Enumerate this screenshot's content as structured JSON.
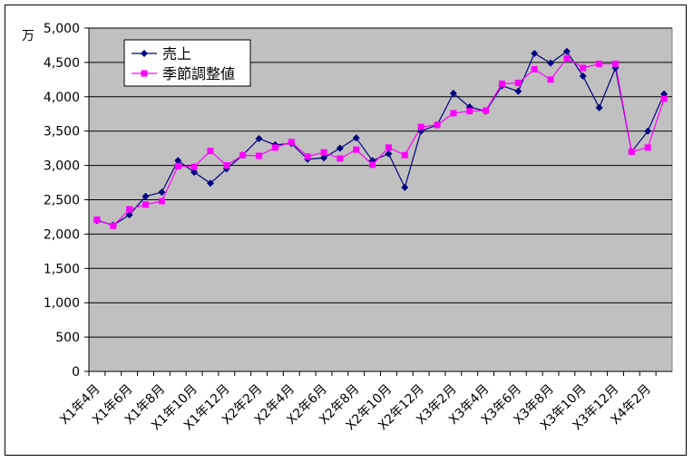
{
  "chart_data": {
    "type": "line",
    "y_unit_label": "万",
    "categories": [
      "X1年4月",
      null,
      "X1年6月",
      null,
      "X1年8月",
      null,
      "X1年10月",
      null,
      "X1年12月",
      null,
      "X2年2月",
      null,
      "X2年4月",
      null,
      "X2年6月",
      null,
      "X2年8月",
      null,
      "X2年10月",
      null,
      "X2年12月",
      null,
      "X3年2月",
      null,
      "X3年4月",
      null,
      "X3年6月",
      null,
      "X3年8月",
      null,
      "X3年10月",
      null,
      "X3年12月",
      null,
      "X4年2月",
      null
    ],
    "series": [
      {
        "name": "売上",
        "color": "#000080",
        "marker": "diamond",
        "values": [
          2200,
          2130,
          2280,
          2550,
          2610,
          3070,
          2900,
          2740,
          2950,
          3150,
          3390,
          3300,
          3320,
          3090,
          3110,
          3250,
          3400,
          3070,
          3170,
          2680,
          3500,
          3590,
          4050,
          3850,
          3790,
          4160,
          4080,
          4630,
          4490,
          4660,
          4300,
          3840,
          4420,
          3200,
          3500,
          4040
        ]
      },
      {
        "name": "季節調整値",
        "color": "#ff00ff",
        "marker": "square",
        "values": [
          2210,
          2120,
          2360,
          2430,
          2480,
          2990,
          2980,
          3210,
          3000,
          3150,
          3140,
          3260,
          3340,
          3130,
          3190,
          3100,
          3230,
          3010,
          3260,
          3150,
          3560,
          3590,
          3760,
          3790,
          3800,
          4190,
          4200,
          4400,
          4250,
          4560,
          4420,
          4480,
          4480,
          3200,
          3260,
          3970
        ]
      }
    ],
    "ylim": [
      0,
      5000
    ],
    "yticks": [
      0,
      500,
      {
        "value": 1000,
        "label": "1,000"
      },
      {
        "value": 1500,
        "label": "1,500"
      },
      {
        "value": 2000,
        "label": "2,000"
      },
      {
        "value": 2500,
        "label": "2,500"
      },
      {
        "value": 3000,
        "label": "3,000"
      },
      {
        "value": 3500,
        "label": "3,500"
      },
      {
        "value": 4000,
        "label": "4,000"
      },
      {
        "value": 4500,
        "label": "4,500"
      },
      {
        "value": 5000,
        "label": "5,000"
      }
    ],
    "grid": true,
    "plot_background": "#c0c0c0",
    "legend": "upper left"
  }
}
